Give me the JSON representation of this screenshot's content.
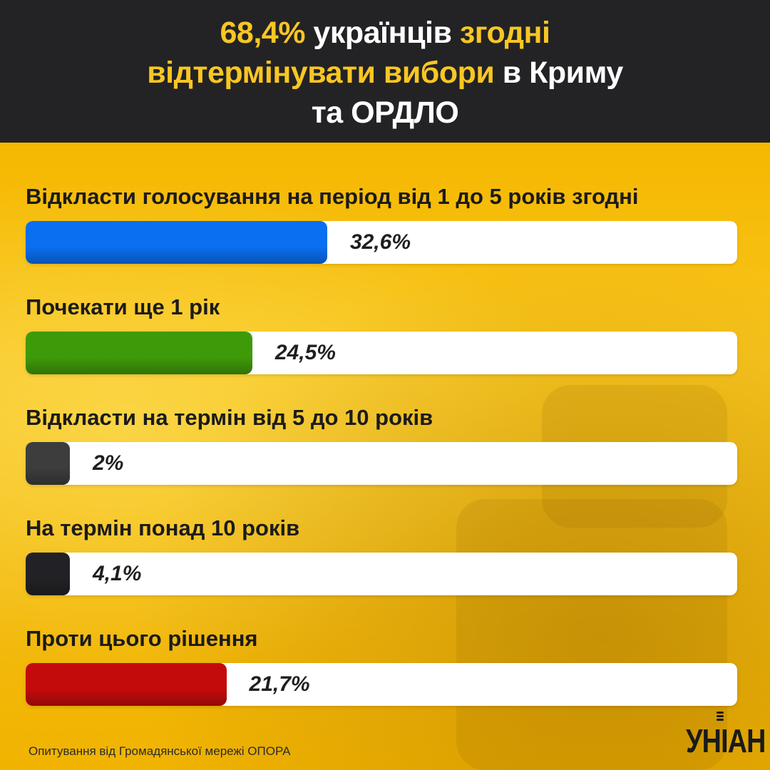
{
  "header": {
    "title_part1": "68,4%",
    "title_part2": " українців ",
    "title_part3": "згодні",
    "title_part4": "відтермінувати вибори",
    "title_part5": " в Криму",
    "title_part6": "та ОРДЛО"
  },
  "chart_data": {
    "type": "bar",
    "categories": [
      "Відкласти голосування на період від 1 до 5 років згодні",
      "Почекати ще 1 рік",
      "Відкласти на термін від 5 до 10 років",
      "На термін понад 10 років",
      "Проти цього рішення"
    ],
    "values": [
      32.6,
      24.5,
      2,
      4.1,
      21.7
    ],
    "value_labels": [
      "32,6%",
      "24,5%",
      "2%",
      "4,1%",
      "21,7%"
    ],
    "colors": [
      "#0a6ff0",
      "#3f9a09",
      "#3d3d3d",
      "#222226",
      "#c40b0b"
    ],
    "xlim": [
      0,
      100
    ],
    "title": "68,4% українців згодні відтермінувати вибори в Криму та ОРДЛО"
  },
  "footer": {
    "source": "Опитування від Громадянської мережі ОПОРА",
    "logo": "УНІАН"
  }
}
